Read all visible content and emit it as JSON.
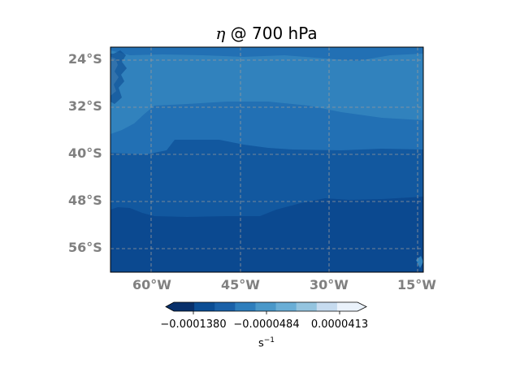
{
  "title": {
    "symbol": "η",
    "text": " @ 700 hPa"
  },
  "lat_labels": [
    "24°S",
    "32°S",
    "40°S",
    "48°S",
    "56°S"
  ],
  "lon_labels": [
    "60°W",
    "45°W",
    "30°W",
    "15°W"
  ],
  "colorbar": {
    "ticks": [
      "−0.0001380",
      "−0.0000484",
      "0.0000413"
    ],
    "unit_base": "s",
    "unit_exp": "−1",
    "colors": [
      "#08306b",
      "#0b4d94",
      "#1a61a8",
      "#2e7ebc",
      "#4a98c9",
      "#6aaed6",
      "#94c4df",
      "#c6dbef",
      "#eaf2fb"
    ]
  },
  "map": {
    "colors": {
      "darkest": "#0b4990",
      "dark": "#12589f",
      "mid": "#2270b4",
      "light": "#3182bd",
      "speck": "#6aaed6",
      "grid": "#999999"
    }
  }
}
